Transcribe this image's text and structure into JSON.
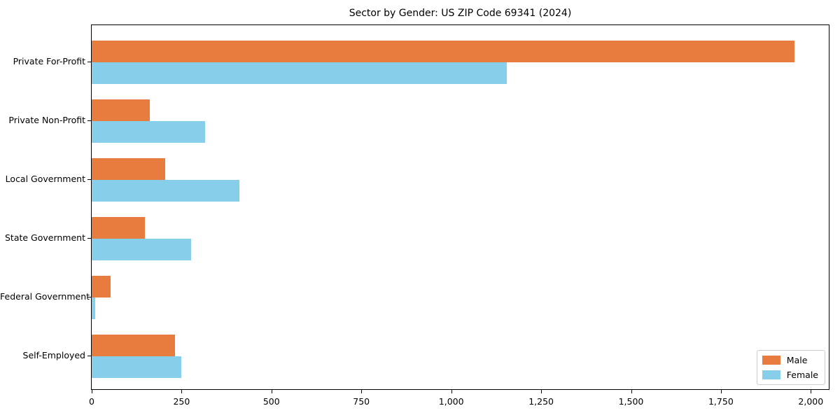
{
  "chart_data": {
    "type": "bar",
    "orientation": "horizontal",
    "title": "Sector by Gender: US ZIP Code 69341 (2024)",
    "xlabel": "",
    "ylabel": "",
    "categories": [
      "Private For-Profit",
      "Private Non-Profit",
      "Local Government",
      "State Government",
      "Federal Government",
      "Self-Employed"
    ],
    "series": [
      {
        "name": "Male",
        "color": "#e87c3e",
        "values": [
          1955,
          162,
          204,
          147,
          52,
          232
        ]
      },
      {
        "name": "Female",
        "color": "#87ceeb",
        "values": [
          1155,
          316,
          410,
          277,
          10,
          249
        ]
      }
    ],
    "xlim": [
      0,
      2050
    ],
    "xticks": [
      0,
      250,
      500,
      750,
      1000,
      1250,
      1500,
      1750,
      2000
    ],
    "xtick_labels": [
      "0",
      "250",
      "500",
      "750",
      "1,000",
      "1,250",
      "1,500",
      "1,750",
      "2,000"
    ],
    "grid": false,
    "legend_position": "lower right",
    "colors": {
      "spine": "#000000",
      "legend_border": "#cccccc",
      "background": "#ffffff"
    }
  }
}
